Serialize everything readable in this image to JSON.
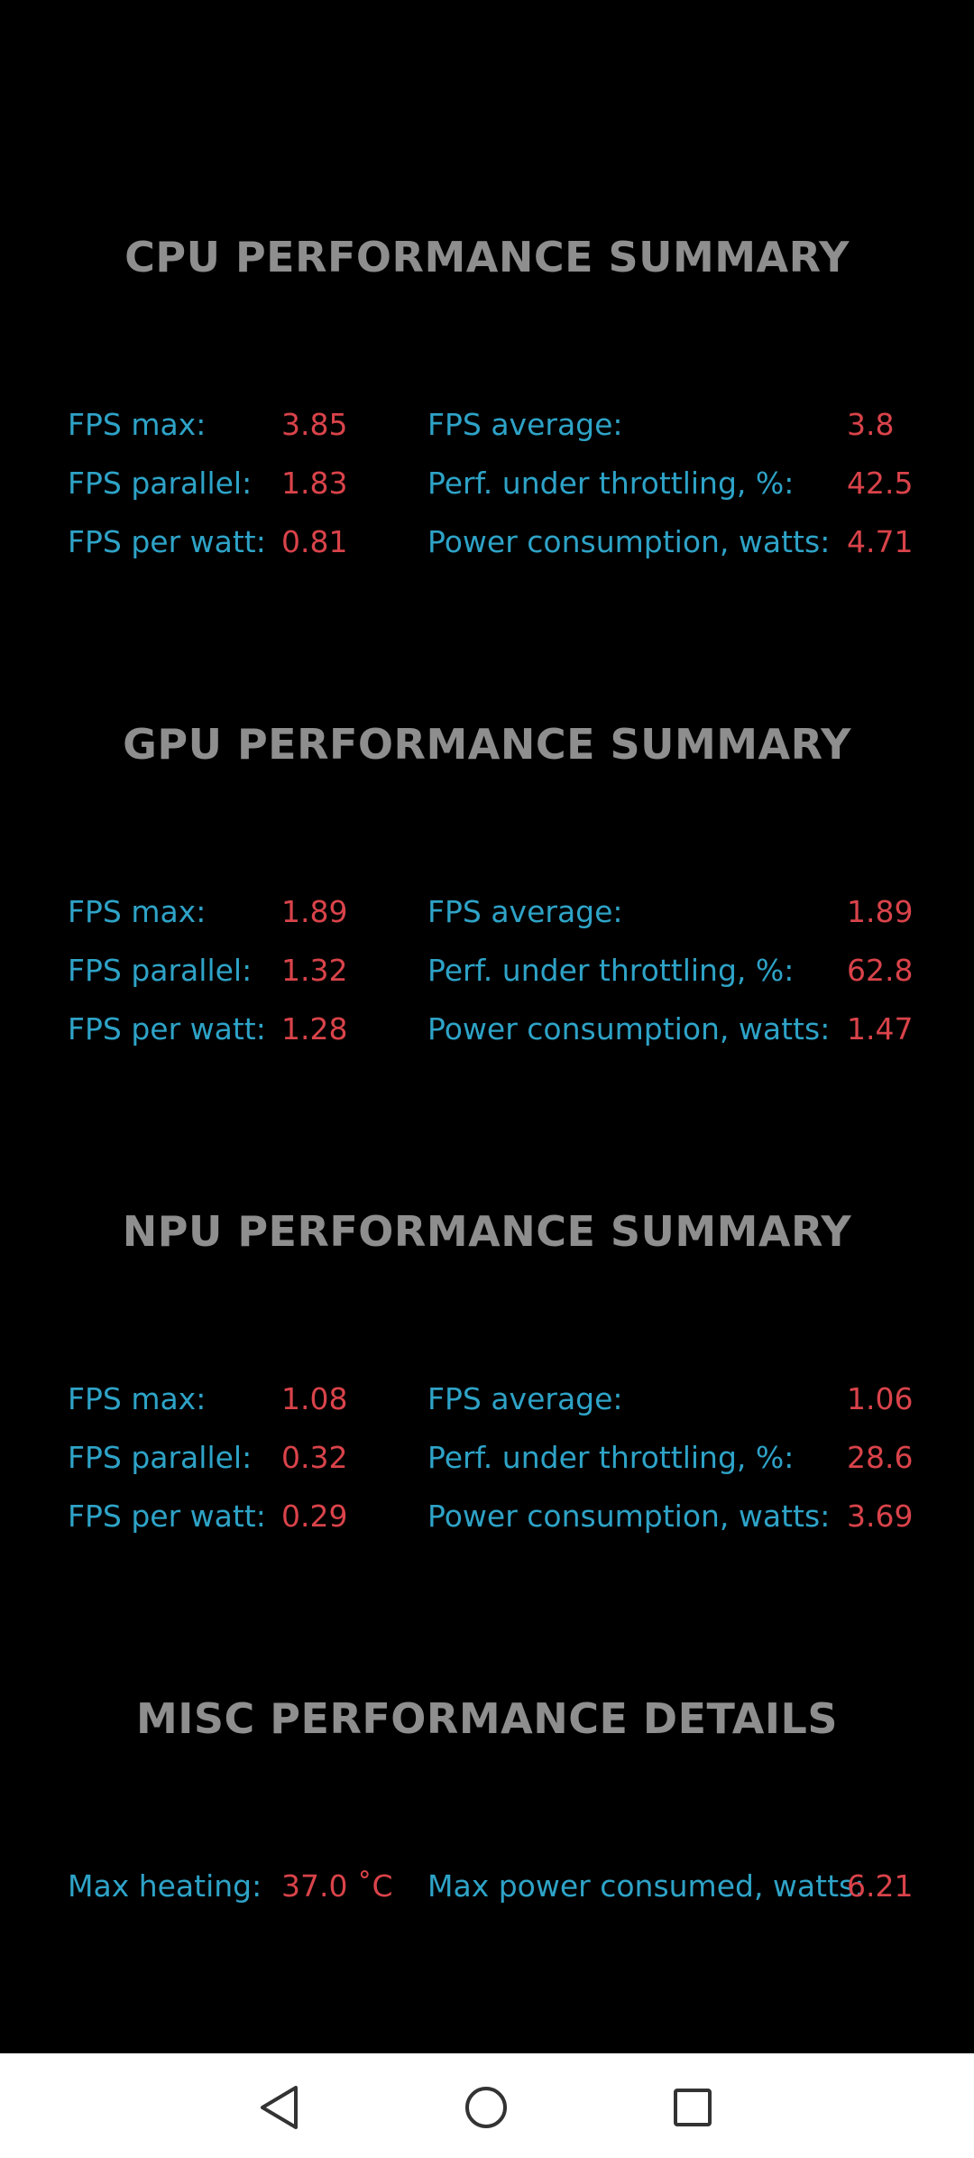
{
  "sections": {
    "cpu": {
      "title": "CPU PERFORMANCE SUMMARY",
      "fps_max_label": "FPS max:",
      "fps_max": "3.85",
      "fps_avg_label": "FPS average:",
      "fps_avg": "3.8",
      "fps_parallel_label": "FPS parallel:",
      "fps_parallel": "1.83",
      "throttle_label": "Perf. under throttling, %:",
      "throttle": "42.5",
      "per_watt_label": "FPS per watt:",
      "per_watt": "0.81",
      "power_label": "Power consumption, watts:",
      "power": "4.71"
    },
    "gpu": {
      "title": "GPU PERFORMANCE SUMMARY",
      "fps_max_label": "FPS max:",
      "fps_max": "1.89",
      "fps_avg_label": "FPS average:",
      "fps_avg": "1.89",
      "fps_parallel_label": "FPS parallel:",
      "fps_parallel": "1.32",
      "throttle_label": "Perf. under throttling, %:",
      "throttle": "62.8",
      "per_watt_label": "FPS per watt:",
      "per_watt": "1.28",
      "power_label": "Power consumption, watts:",
      "power": "1.47"
    },
    "npu": {
      "title": "NPU PERFORMANCE SUMMARY",
      "fps_max_label": "FPS max:",
      "fps_max": "1.08",
      "fps_avg_label": "FPS average:",
      "fps_avg": "1.06",
      "fps_parallel_label": "FPS parallel:",
      "fps_parallel": "0.32",
      "throttle_label": "Perf. under throttling, %:",
      "throttle": "28.6",
      "per_watt_label": "FPS per watt:",
      "per_watt": "0.29",
      "power_label": "Power consumption, watts:",
      "power": "3.69"
    },
    "misc": {
      "title": "MISC PERFORMANCE DETAILS",
      "max_heating_label": "Max heating:",
      "max_heating": "37.0 ˚C",
      "max_power_label": "Max power consumed, watts:",
      "max_power": "6.21"
    }
  },
  "colors": {
    "background": "#000000",
    "title": "#8e8e8e",
    "label": "#2ea3c7",
    "value": "#d9434a",
    "navbar": "#ffffff"
  },
  "navbar": {
    "icons": [
      "back-triangle-icon",
      "home-circle-icon",
      "recents-square-icon"
    ]
  }
}
